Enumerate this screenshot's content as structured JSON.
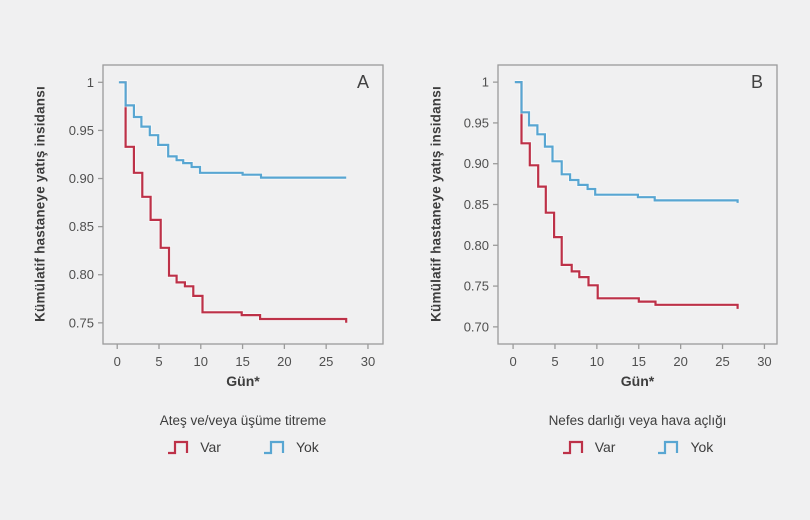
{
  "background": "#f0f0f1",
  "styles": {
    "axis_color": "#9b9b9b",
    "tick_label_color": "#4f4f4f",
    "text_color": "#3d3d3d",
    "halo_color": "#ffffff",
    "var_color": "#bd3148",
    "yok_color": "#58a6d2"
  },
  "chart_data": [
    {
      "panel_label": "A",
      "type": "line",
      "step": true,
      "grid": false,
      "ylabel": "Kümülatif hastaneye yatış insidansı",
      "xlabel": "Gün*",
      "legend_title": "Ateş ve/veya üşüme titreme",
      "legend_position": "bottom",
      "xlim": [
        -1.7,
        31.8
      ],
      "ylim": [
        0.728,
        1.018
      ],
      "xticks": [
        0,
        5,
        10,
        15,
        20,
        25,
        30
      ],
      "yticks": [
        1,
        0.95,
        0.9,
        0.85,
        0.8,
        0.75
      ],
      "series": [
        {
          "name": "Var",
          "color": "#bd3148",
          "points": [
            [
              0.3,
              1.0
            ],
            [
              1,
              0.933
            ],
            [
              2,
              0.906
            ],
            [
              3,
              0.881
            ],
            [
              4,
              0.857
            ],
            [
              5.2,
              0.828
            ],
            [
              6.2,
              0.799
            ],
            [
              7.1,
              0.792
            ],
            [
              8.1,
              0.788
            ],
            [
              9.1,
              0.778
            ],
            [
              10.2,
              0.761
            ],
            [
              14.9,
              0.758
            ],
            [
              17.1,
              0.754
            ],
            [
              27.4,
              0.75
            ]
          ]
        },
        {
          "name": "Yok",
          "color": "#58a6d2",
          "points": [
            [
              0.2,
              1.0
            ],
            [
              1,
              0.976
            ],
            [
              2,
              0.964
            ],
            [
              2.9,
              0.954
            ],
            [
              3.9,
              0.945
            ],
            [
              4.9,
              0.935
            ],
            [
              6.1,
              0.923
            ],
            [
              7.1,
              0.919
            ],
            [
              7.9,
              0.916
            ],
            [
              8.9,
              0.912
            ],
            [
              9.9,
              0.906
            ],
            [
              15,
              0.904
            ],
            [
              17.2,
              0.901
            ],
            [
              27.4,
              0.901
            ]
          ]
        }
      ]
    },
    {
      "panel_label": "B",
      "type": "line",
      "step": true,
      "grid": false,
      "ylabel": "Kümülatif hastaneye yatış insidansı",
      "xlabel": "Gün*",
      "legend_title": "Nefes darlığı veya hava açlığı",
      "legend_position": "bottom",
      "xlim": [
        -1.8,
        31.5
      ],
      "ylim": [
        0.679,
        1.021
      ],
      "xticks": [
        0,
        5,
        10,
        15,
        20,
        25,
        30
      ],
      "yticks": [
        1,
        0.95,
        0.9,
        0.85,
        0.8,
        0.75,
        0.7
      ],
      "series": [
        {
          "name": "Var",
          "color": "#bd3148",
          "points": [
            [
              0.3,
              1.0
            ],
            [
              1,
              0.925
            ],
            [
              2,
              0.898
            ],
            [
              3,
              0.872
            ],
            [
              3.9,
              0.84
            ],
            [
              4.9,
              0.81
            ],
            [
              5.8,
              0.776
            ],
            [
              7,
              0.768
            ],
            [
              7.9,
              0.761
            ],
            [
              9,
              0.751
            ],
            [
              10.1,
              0.735
            ],
            [
              15,
              0.731
            ],
            [
              17,
              0.727
            ],
            [
              26.8,
              0.722
            ]
          ]
        },
        {
          "name": "Yok",
          "color": "#58a6d2",
          "points": [
            [
              0.2,
              1.0
            ],
            [
              1,
              0.963
            ],
            [
              1.9,
              0.947
            ],
            [
              2.9,
              0.936
            ],
            [
              3.8,
              0.921
            ],
            [
              4.7,
              0.903
            ],
            [
              5.8,
              0.887
            ],
            [
              6.8,
              0.88
            ],
            [
              7.8,
              0.874
            ],
            [
              8.9,
              0.869
            ],
            [
              9.8,
              0.862
            ],
            [
              14.9,
              0.859
            ],
            [
              16.9,
              0.855
            ],
            [
              26.8,
              0.852
            ]
          ]
        }
      ]
    }
  ]
}
